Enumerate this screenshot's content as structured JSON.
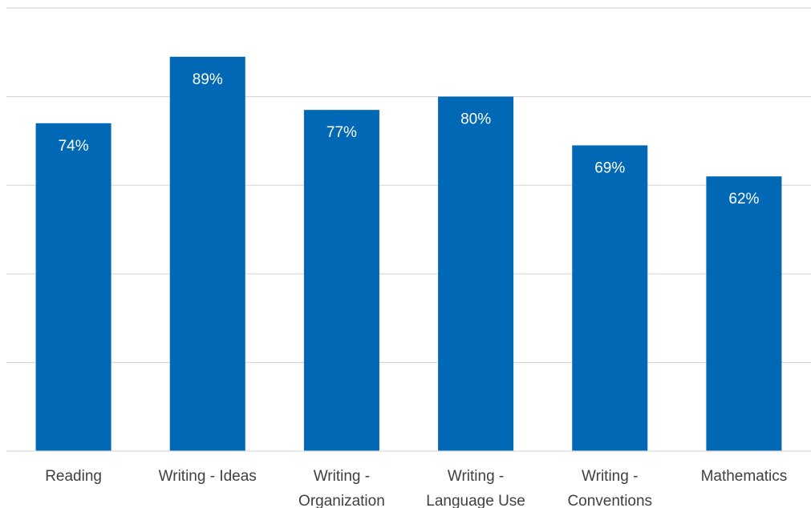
{
  "chart_data": {
    "type": "bar",
    "title": "",
    "xlabel": "",
    "ylabel": "",
    "categories": [
      [
        "Reading"
      ],
      [
        "Writing - Ideas"
      ],
      [
        "Writing -",
        "Organization"
      ],
      [
        "Writing -",
        "Language Use"
      ],
      [
        "Writing -",
        "Conventions"
      ],
      [
        "Mathematics"
      ]
    ],
    "values": [
      74,
      89,
      77,
      80,
      69,
      62
    ],
    "value_labels": [
      "74%",
      "89%",
      "77%",
      "80%",
      "69%",
      "62%"
    ],
    "ylim": [
      0,
      100
    ],
    "gridlines": [
      20,
      40,
      60,
      80,
      100
    ],
    "grid": true,
    "show_y_ticks": false,
    "legend": "none",
    "colors": {
      "bar": "#0068b5",
      "grid": "#d9d9d9",
      "data_label": "#ffffff",
      "category_label": "#404040"
    }
  }
}
